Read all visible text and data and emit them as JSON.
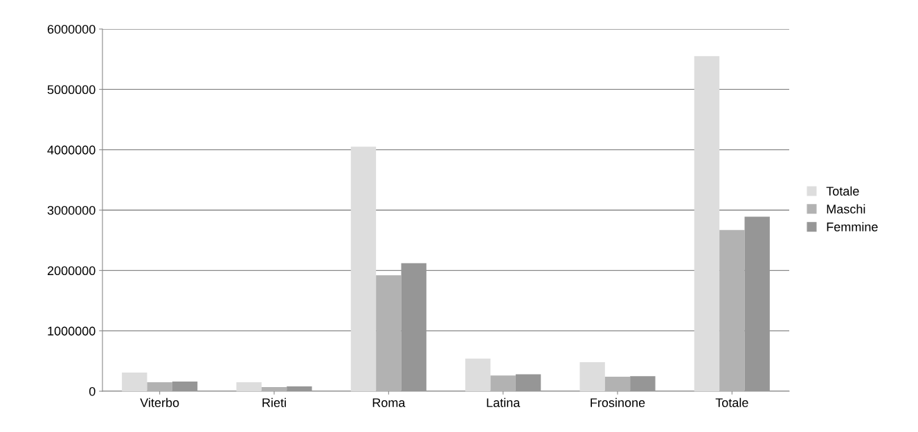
{
  "chart_data": {
    "type": "bar",
    "categories": [
      "Viterbo",
      "Rieti",
      "Roma",
      "Latina",
      "Frosinone",
      "Totale"
    ],
    "series": [
      {
        "name": "Totale",
        "color": "#dddddd",
        "values": [
          310000,
          150000,
          4050000,
          540000,
          480000,
          5550000
        ]
      },
      {
        "name": "Maschi",
        "color": "#b2b2b2",
        "values": [
          150000,
          70000,
          1920000,
          260000,
          240000,
          2670000
        ]
      },
      {
        "name": "Femmine",
        "color": "#969696",
        "values": [
          160000,
          80000,
          2120000,
          280000,
          250000,
          2890000
        ]
      }
    ],
    "ylim": [
      0,
      6000000
    ],
    "yticks": [
      0,
      1000000,
      2000000,
      3000000,
      4000000,
      5000000,
      6000000
    ],
    "grid": "y",
    "legend": "right"
  }
}
